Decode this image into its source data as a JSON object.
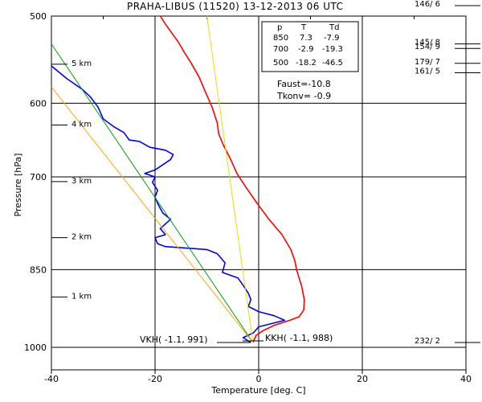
{
  "chart_data": {
    "type": "line",
    "title": "PRAHA-LIBUS (11520)    13-12-2013  06  UTC",
    "xlabel": "Temperature [deg. C]",
    "ylabel": "Pressure [hPa]",
    "xlim": [
      -40,
      40
    ],
    "ylim": [
      1000,
      500
    ],
    "y_scale": "log",
    "grid": true,
    "x_ticks": [
      "-40",
      "-20",
      "0",
      "20",
      "40"
    ],
    "y_ticks": [
      "500",
      "600",
      "700",
      "850",
      "1000"
    ],
    "y_tick_values": [
      500,
      600,
      700,
      850,
      1000
    ],
    "height_labels": [
      {
        "text": "5 km",
        "p": 553
      },
      {
        "text": "4 km",
        "p": 628
      },
      {
        "text": "3 km",
        "p": 707
      },
      {
        "text": "2 km",
        "p": 795
      },
      {
        "text": "1 km",
        "p": 900
      }
    ],
    "table": {
      "headers": [
        "p",
        "T",
        "Td"
      ],
      "rows": [
        [
          "850",
          "7.3",
          "-7.9"
        ],
        [
          "700",
          "-2.9",
          "-19.3"
        ],
        [
          "500",
          "-18.2",
          "-46.5"
        ]
      ]
    },
    "indices": [
      "Faust=-10.8",
      "Tkonv= -0.9"
    ],
    "annotations": [
      "VKH( -1.1, 991)",
      "KKH( -1.1, 988)"
    ],
    "wind_labels": [
      {
        "text": "146/ 6",
        "p": 485
      },
      {
        "text": "145/ 8",
        "p": 530
      },
      {
        "text": "154/ 9",
        "p": 535
      },
      {
        "text": "179/ 7",
        "p": 552
      },
      {
        "text": "161/ 5",
        "p": 563
      },
      {
        "text": "232/ 2",
        "p": 990
      }
    ],
    "series": [
      {
        "color": "#ff0000",
        "points": [
          [
            -19,
            500
          ],
          [
            -17.8,
            510
          ],
          [
            -15.5,
            528
          ],
          [
            -14.3,
            540
          ],
          [
            -13,
            552
          ],
          [
            -11.5,
            568
          ],
          [
            -10,
            590
          ],
          [
            -9,
            605
          ],
          [
            -8.5,
            615
          ],
          [
            -8,
            625
          ],
          [
            -7.7,
            640
          ],
          [
            -6.8,
            655
          ],
          [
            -5.4,
            675
          ],
          [
            -4.2,
            695
          ],
          [
            -2.5,
            715
          ],
          [
            -0.3,
            740
          ],
          [
            2,
            765
          ],
          [
            4.5,
            790
          ],
          [
            6.2,
            815
          ],
          [
            7,
            835
          ],
          [
            7.3,
            850
          ],
          [
            8.3,
            880
          ],
          [
            8.8,
            905
          ],
          [
            8.7,
            925
          ],
          [
            7.8,
            938
          ],
          [
            6,
            945
          ],
          [
            3,
            955
          ],
          [
            0.8,
            966
          ],
          [
            -0.5,
            975
          ],
          [
            -1.1,
            990
          ]
        ]
      },
      {
        "color": "#0000ff",
        "points": [
          [
            -40,
            555
          ],
          [
            -37,
            570
          ],
          [
            -34,
            583
          ],
          [
            -32.5,
            592
          ],
          [
            -31,
            605
          ],
          [
            -30,
            620
          ],
          [
            -28,
            630
          ],
          [
            -26,
            638
          ],
          [
            -25,
            648
          ],
          [
            -23,
            650
          ],
          [
            -21,
            658
          ],
          [
            -18,
            662
          ],
          [
            -16.5,
            668
          ],
          [
            -17,
            675
          ],
          [
            -20,
            690
          ],
          [
            -22,
            695
          ],
          [
            -20,
            700
          ],
          [
            -20.5,
            708
          ],
          [
            -19.5,
            720
          ],
          [
            -20,
            730
          ],
          [
            -19.5,
            740
          ],
          [
            -18.5,
            755
          ],
          [
            -17,
            765
          ],
          [
            -19,
            780
          ],
          [
            -18,
            790
          ],
          [
            -20,
            795
          ],
          [
            -19.5,
            805
          ],
          [
            -18,
            810
          ],
          [
            -10,
            815
          ],
          [
            -8,
            822
          ],
          [
            -6.5,
            838
          ],
          [
            -7,
            855
          ],
          [
            -4,
            865
          ],
          [
            -3,
            878
          ],
          [
            -2,
            893
          ],
          [
            -1.5,
            905
          ],
          [
            -2,
            918
          ],
          [
            0,
            928
          ],
          [
            3,
            936
          ],
          [
            5,
            945
          ],
          [
            0,
            958
          ],
          [
            -1,
            970
          ],
          [
            -3,
            980
          ],
          [
            -1.5,
            990
          ]
        ]
      },
      {
        "color": "#00a000",
        "points": [
          [
            -40,
            530
          ],
          [
            -1.1,
            990
          ]
        ]
      },
      {
        "color": "#ffa500",
        "points": [
          [
            -40,
            580
          ],
          [
            -1.1,
            990
          ]
        ]
      },
      {
        "color": "#e8e000",
        "points": [
          [
            -10,
            500
          ],
          [
            -1.1,
            990
          ]
        ]
      }
    ]
  }
}
